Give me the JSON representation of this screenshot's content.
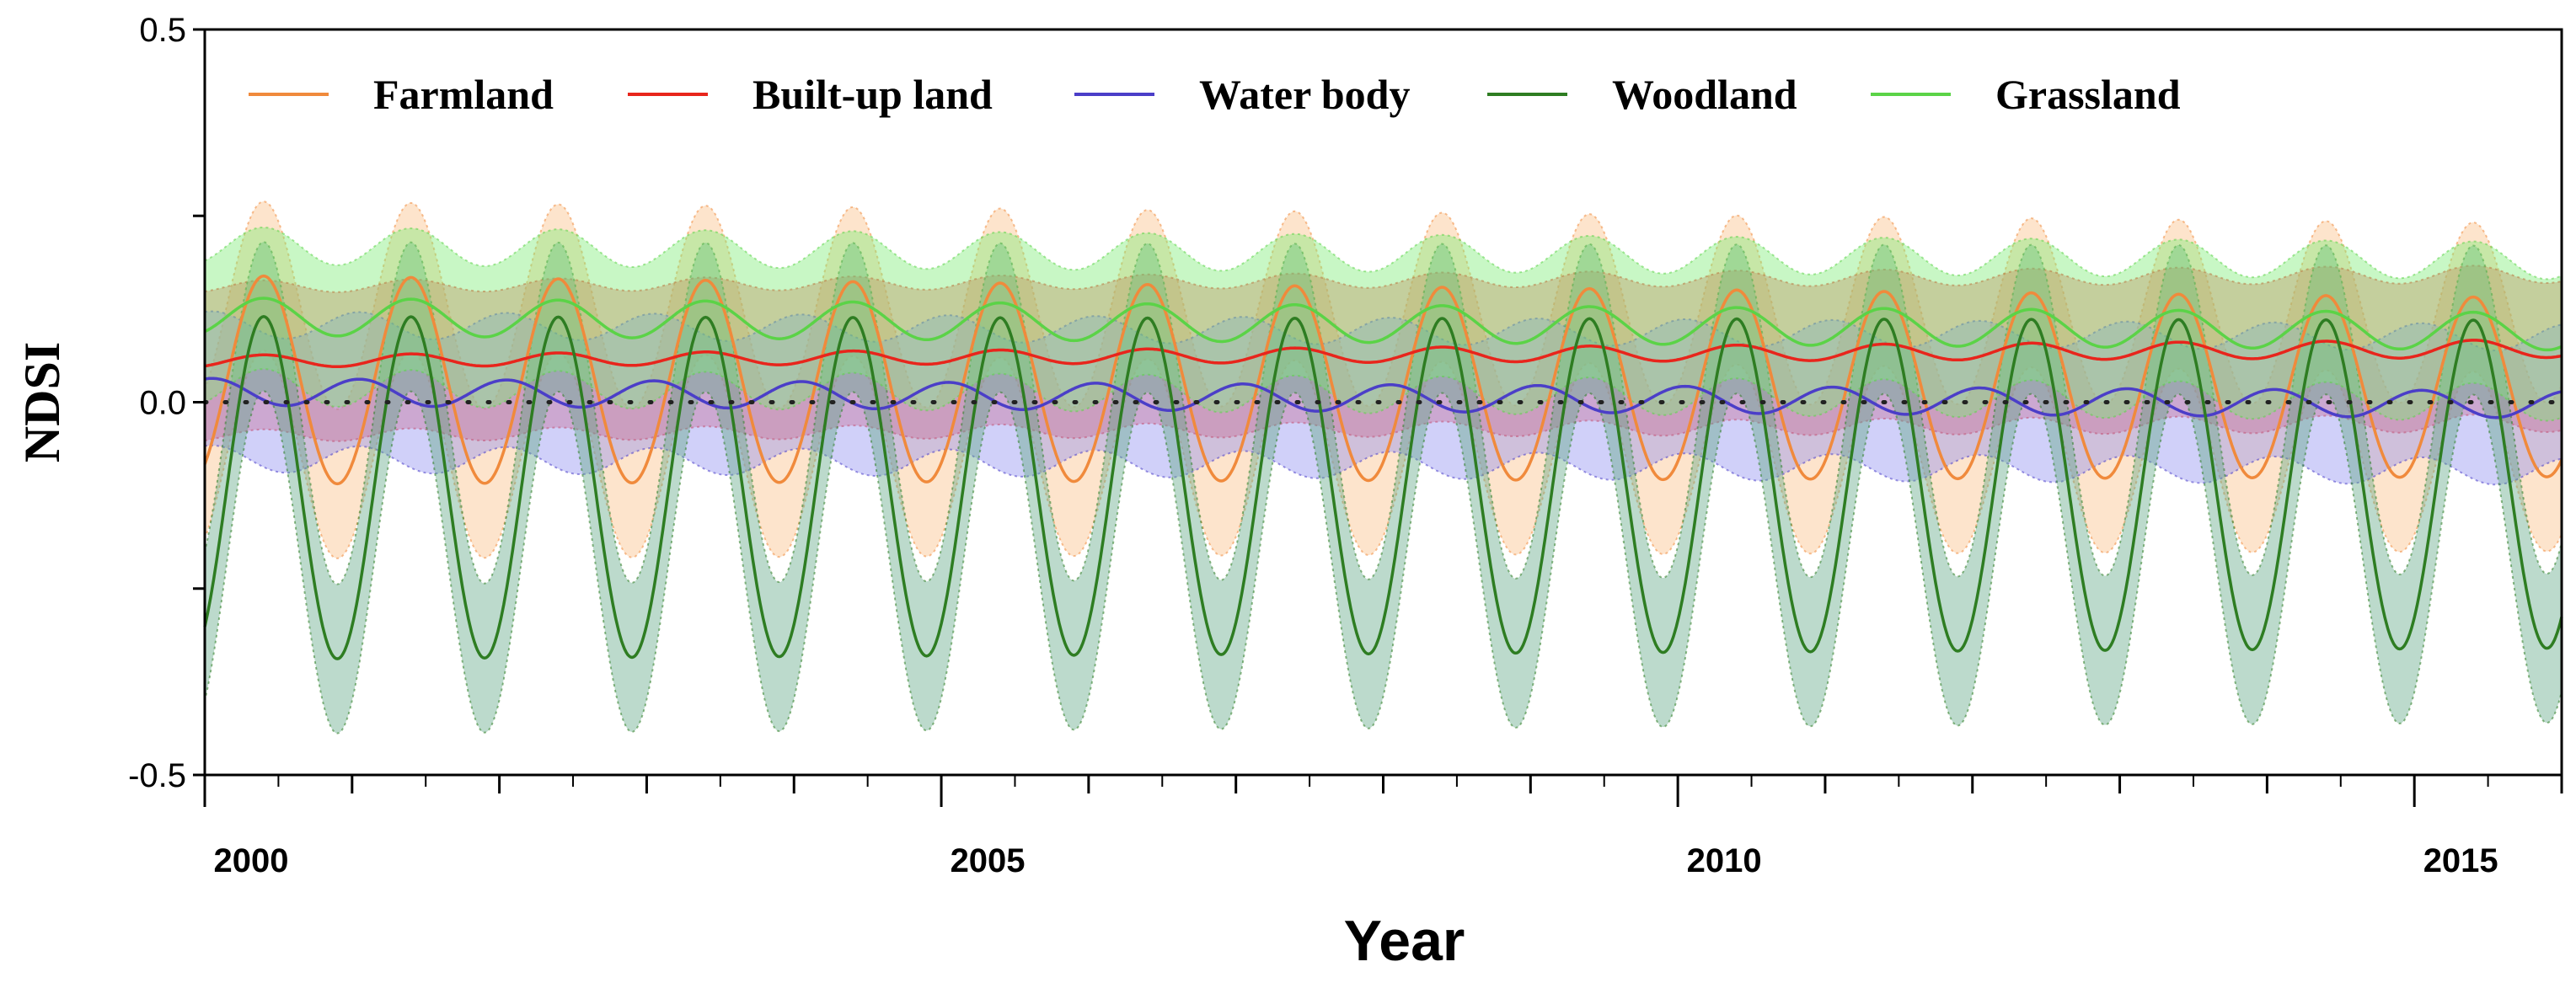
{
  "chart_data": {
    "type": "line",
    "title": "",
    "xlabel": "Year",
    "ylabel": "NDSI",
    "xlim": [
      2000,
      2016
    ],
    "ylim": [
      -0.5,
      0.5
    ],
    "x_ticks": [
      2000,
      2005,
      2010,
      2015
    ],
    "x_tick_labels": [
      "2000",
      "2005",
      "2010",
      "2015"
    ],
    "y_ticks": [
      -0.5,
      0.0,
      0.5
    ],
    "y_tick_labels": [
      "-0.5",
      "0.0",
      "0.5"
    ],
    "reference_line": {
      "y": 0.0,
      "style": "dotted"
    },
    "grid": false,
    "legend_position": "top",
    "uncertainty_band": "shaded envelope around each mean curve",
    "series": [
      {
        "name": "Farmland",
        "color": "#f08a3c",
        "fill": "#fbbf86",
        "mean_start": 0.03,
        "mean_end": 0.02,
        "amp_start": 0.14,
        "amp_end": 0.12,
        "phase": 0.0,
        "band_start": 0.1,
        "band_end": 0.1
      },
      {
        "name": "Built-up land",
        "color": "#e8251c",
        "fill": "#ee5a5a",
        "mean_start": 0.055,
        "mean_end": 0.072,
        "amp_start": 0.008,
        "amp_end": 0.012,
        "phase": 0.0,
        "band_start": 0.1,
        "band_end": 0.1
      },
      {
        "name": "Water body",
        "color": "#4b3ec8",
        "fill": "#8f8ef0",
        "mean_start": 0.014,
        "mean_end": -0.003,
        "amp_start": 0.018,
        "amp_end": 0.018,
        "phase": 0.35,
        "band_start": 0.09,
        "band_end": 0.09
      },
      {
        "name": "Woodland",
        "color": "#2e7d22",
        "fill": "#5fa686",
        "mean_start": -0.115,
        "mean_end": -0.11,
        "amp_start": 0.23,
        "amp_end": 0.22,
        "phase": 0.0,
        "band_start": 0.1,
        "band_end": 0.1
      },
      {
        "name": "Grassland",
        "color": "#5bd347",
        "fill": "#7ded74",
        "mean_start": 0.115,
        "mean_end": 0.095,
        "amp_start": 0.025,
        "amp_end": 0.025,
        "phase": 0.0,
        "band_start": 0.095,
        "band_end": 0.095
      }
    ]
  }
}
